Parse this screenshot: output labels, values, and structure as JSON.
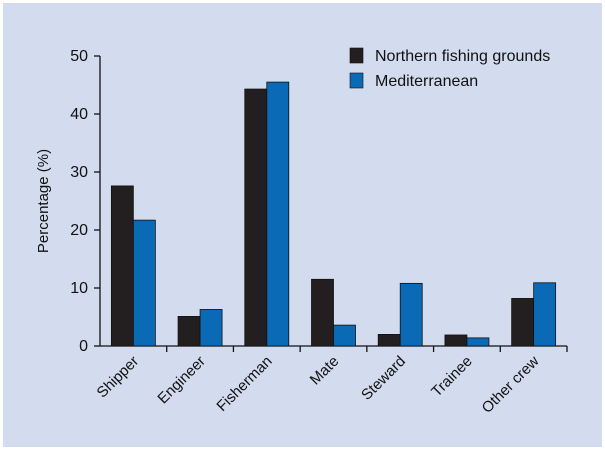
{
  "chart_data": {
    "type": "bar",
    "categories": [
      "Shipper",
      "Engineer",
      "Fisherman",
      "Mate",
      "Steward",
      "Trainee",
      "Other crew"
    ],
    "series": [
      {
        "name": "Northern fishing grounds",
        "values": [
          27.6,
          5.1,
          44.3,
          11.5,
          2.0,
          1.9,
          8.2
        ],
        "color": "#231f20"
      },
      {
        "name": "Mediterranean",
        "values": [
          21.7,
          6.3,
          45.5,
          3.6,
          10.8,
          1.4,
          10.9
        ],
        "color": "#0a6ab6"
      }
    ],
    "title": "",
    "xlabel": "",
    "ylabel": "Percentage (%)",
    "ylim": [
      0,
      50
    ],
    "yticks": [
      "0",
      "10",
      "20",
      "30",
      "40",
      "50"
    ],
    "grid": false,
    "legend_position": "top-right",
    "background_color": "#d3dcef"
  }
}
